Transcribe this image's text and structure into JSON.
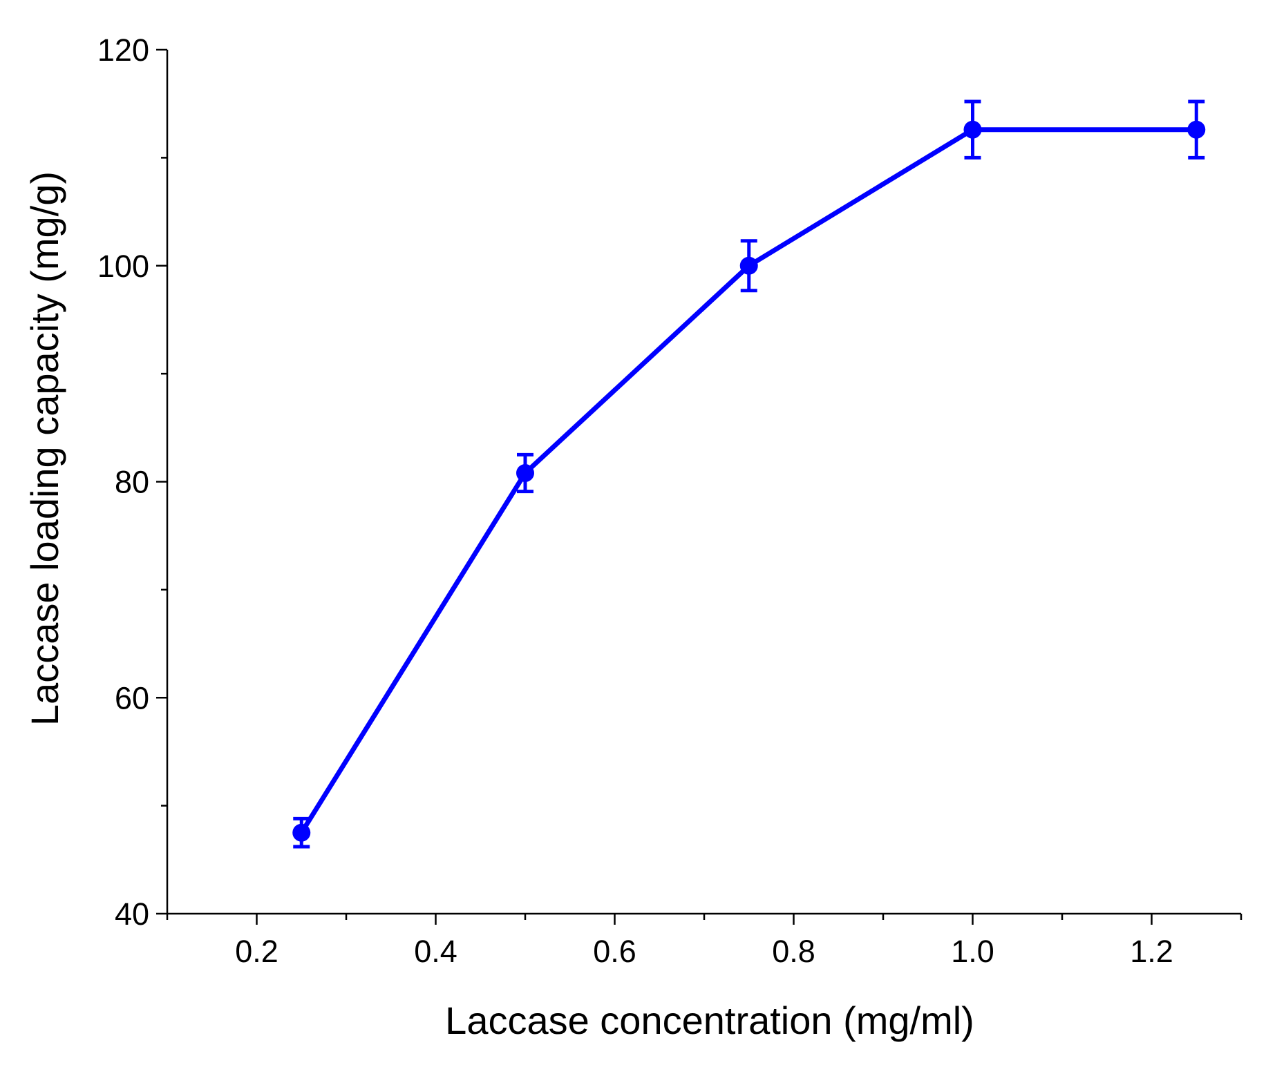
{
  "chart_data": {
    "type": "line",
    "title": "",
    "xlabel": "Laccase concentration (mg/ml)",
    "ylabel": "Laccase loading capacity (mg/g)",
    "xlim": [
      0.1,
      1.3
    ],
    "ylim": [
      40,
      120
    ],
    "x_major_ticks": [
      0.2,
      0.4,
      0.6,
      0.8,
      1.0,
      1.2
    ],
    "x_tick_labels": [
      "0.2",
      "0.4",
      "0.6",
      "0.8",
      "1.0",
      "1.2"
    ],
    "x_minor_ticks": [
      0.1,
      0.3,
      0.5,
      0.7,
      0.9,
      1.1,
      1.3
    ],
    "y_major_ticks": [
      40,
      60,
      80,
      100,
      120
    ],
    "y_tick_labels": [
      "40",
      "60",
      "80",
      "100",
      "120"
    ],
    "y_minor_ticks": [
      50,
      70,
      90,
      110
    ],
    "grid": false,
    "series": [
      {
        "name": "Laccase loading capacity",
        "color": "#0000ff",
        "marker": "circle",
        "x": [
          0.25,
          0.5,
          0.75,
          1.0,
          1.25
        ],
        "y": [
          47.5,
          80.8,
          100.0,
          112.6,
          112.6
        ],
        "error": [
          1.3,
          1.7,
          2.3,
          2.6,
          2.6
        ]
      }
    ]
  }
}
